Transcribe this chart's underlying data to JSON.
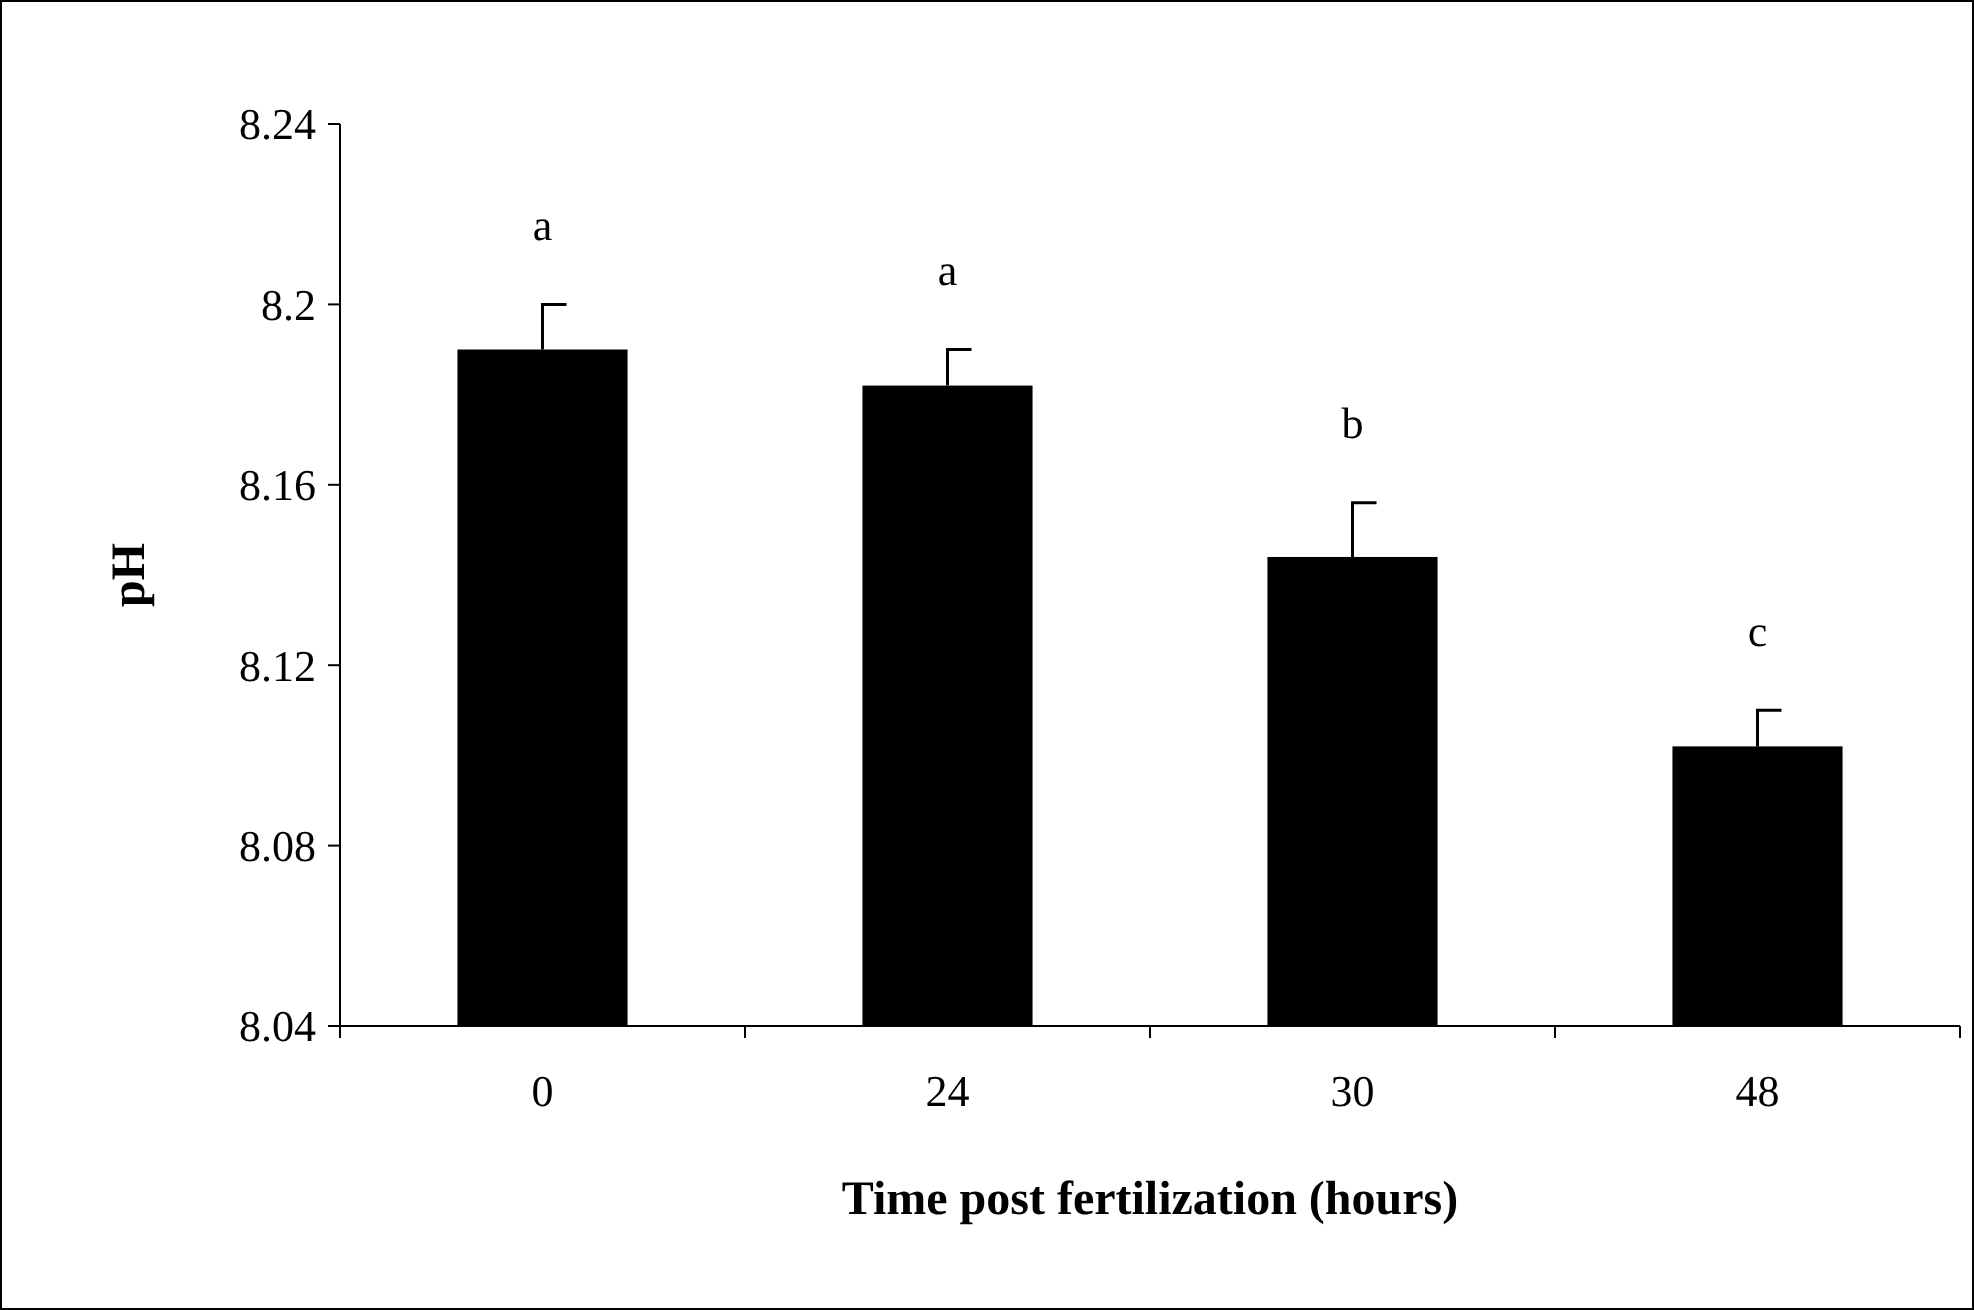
{
  "chart_data": {
    "type": "bar",
    "xlabel": "Time post fertilization (hours)",
    "ylabel": "pH",
    "categories": [
      "0",
      "24",
      "30",
      "48"
    ],
    "values": [
      8.19,
      8.182,
      8.144,
      8.102
    ],
    "errors": [
      0.01,
      0.008,
      0.012,
      0.008
    ],
    "color": "#000000",
    "ylim": [
      8.04,
      8.24
    ],
    "yticks": [
      8.04,
      8.08,
      8.12,
      8.16,
      8.2,
      8.24
    ],
    "annotations": [
      "a",
      "a",
      "b",
      "c"
    ]
  }
}
